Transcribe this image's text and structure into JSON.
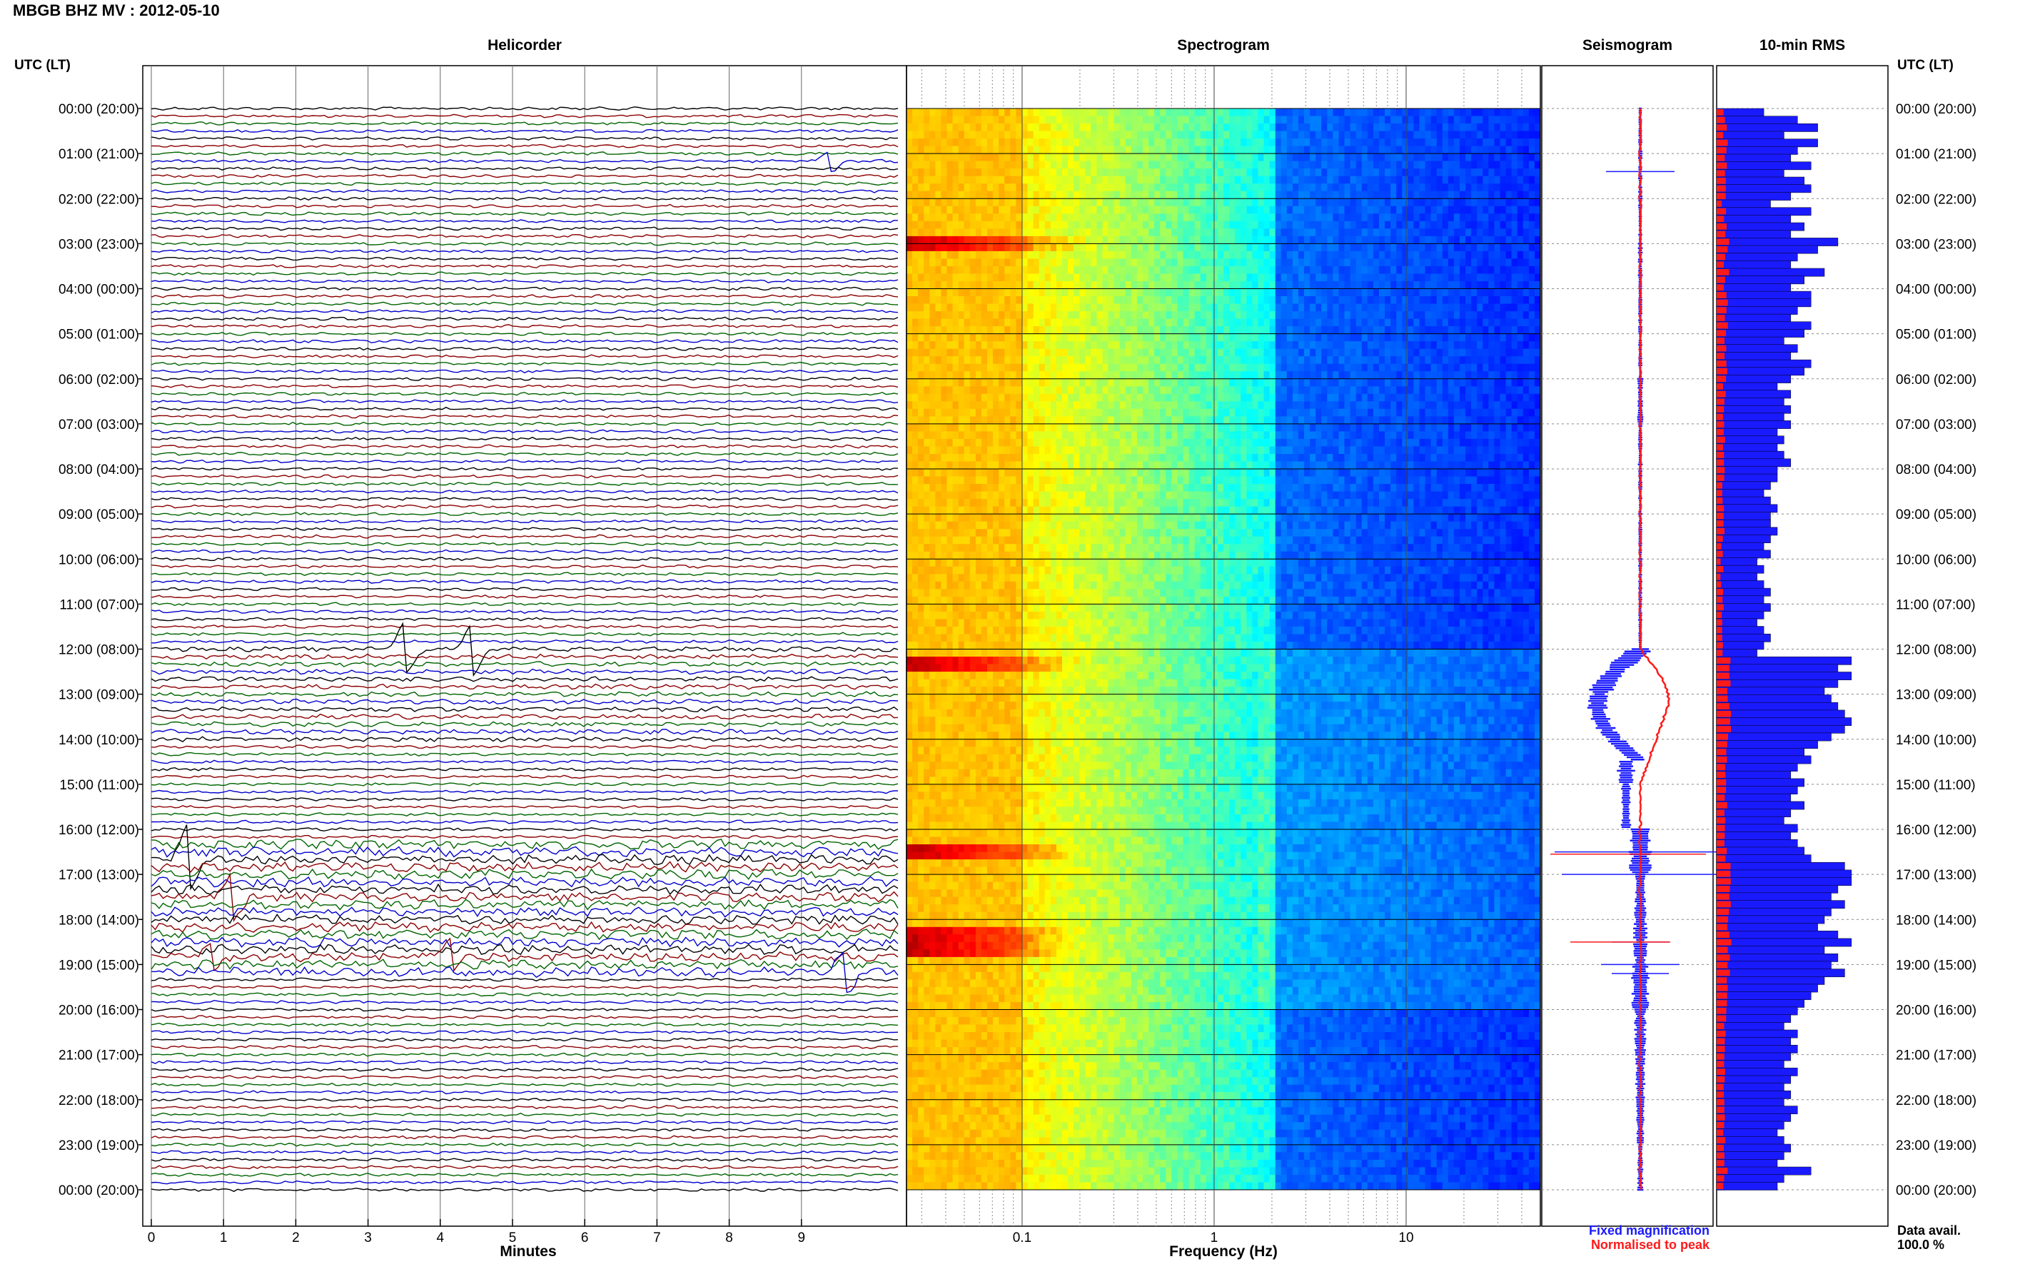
{
  "page": {
    "title": "MBGB BHZ MV : 2012-05-10"
  },
  "panels": {
    "helicorder": "Helicorder",
    "spectrogram": "Spectrogram",
    "seismogram": "Seismogram",
    "rms": "10-min RMS"
  },
  "axes": {
    "time_label_left": "UTC (LT)",
    "time_label_right": "UTC (LT)",
    "hour_labels": [
      "00:00 (20:00)",
      "01:00 (21:00)",
      "02:00 (22:00)",
      "03:00 (23:00)",
      "04:00 (00:00)",
      "05:00 (01:00)",
      "06:00 (02:00)",
      "07:00 (03:00)",
      "08:00 (04:00)",
      "09:00 (05:00)",
      "10:00 (06:00)",
      "11:00 (07:00)",
      "12:00 (08:00)",
      "13:00 (09:00)",
      "14:00 (10:00)",
      "15:00 (11:00)",
      "16:00 (12:00)",
      "17:00 (13:00)",
      "18:00 (14:00)",
      "19:00 (15:00)",
      "20:00 (16:00)",
      "21:00 (17:00)",
      "22:00 (18:00)",
      "23:00 (19:00)",
      "00:00 (20:00)"
    ],
    "minutes_label": "Minutes",
    "minute_ticks": [
      "0",
      "1",
      "2",
      "3",
      "4",
      "5",
      "6",
      "7",
      "8",
      "9"
    ],
    "frequency_label": "Frequency (Hz)",
    "frequency_ticks": [
      "0.1",
      "1",
      "10"
    ]
  },
  "legend": {
    "fixed": "Fixed magnification",
    "normalised": "Normalised to peak",
    "fixed_color": "#1a1aff",
    "normalised_color": "#ff1a1a"
  },
  "data_avail": {
    "label": "Data avail.",
    "value": "100.0 %"
  },
  "colors": {
    "trace_colors": [
      "#000000",
      "#8b0000",
      "#006400",
      "#0000cd"
    ],
    "seismogram_fixed": "#1a1aff",
    "seismogram_norm": "#ff1a1a",
    "rms_fixed": "#1a1aff",
    "rms_norm": "#ff1a1a"
  },
  "chart_data": {
    "type": "heatmap",
    "helicorder": {
      "lines_per_hour": 6,
      "minutes_per_line": 10,
      "events_utc": [
        {
          "time": "01:10",
          "minute": 9.1,
          "size": 0.5
        },
        {
          "time": "12:00",
          "minute": 3.4,
          "size": 1.2
        },
        {
          "time": "12:00",
          "minute": 4.3,
          "size": 1.2
        },
        {
          "time": "16:40",
          "minute": 0.5,
          "size": 1.5
        },
        {
          "time": "17:30",
          "minute": 1.1,
          "size": 1.0
        },
        {
          "time": "18:50",
          "minute": 0.8,
          "size": 0.7
        },
        {
          "time": "18:50",
          "minute": 4.0,
          "size": 0.8
        },
        {
          "time": "19:10",
          "minute": 9.3,
          "size": 1.0
        }
      ]
    },
    "spectrogram": {
      "frequency_range_hz": [
        0.025,
        50
      ],
      "x_scale": "log",
      "hot_bands_utc": [
        "03:00",
        "12:20",
        "16:30",
        "18:20",
        "18:40"
      ]
    },
    "seismogram_hourly_amplitude": [
      0.2,
      0.22,
      0.2,
      0.24,
      0.2,
      0.2,
      0.3,
      0.24,
      0.2,
      0.2,
      0.2,
      0.2,
      1.4,
      1.0,
      0.9,
      0.5,
      1.2,
      0.6,
      0.7,
      0.9,
      0.6,
      0.5,
      0.4,
      0.3
    ],
    "rms_10min": [
      0.35,
      0.6,
      0.75,
      0.5,
      0.75,
      0.6,
      0.55,
      0.7,
      0.5,
      0.65,
      0.7,
      0.55,
      0.4,
      0.7,
      0.55,
      0.65,
      0.55,
      0.9,
      0.75,
      0.6,
      0.55,
      0.8,
      0.65,
      0.55,
      0.7,
      0.7,
      0.6,
      0.55,
      0.7,
      0.65,
      0.5,
      0.6,
      0.55,
      0.7,
      0.65,
      0.55,
      0.45,
      0.55,
      0.5,
      0.55,
      0.5,
      0.55,
      0.45,
      0.5,
      0.45,
      0.5,
      0.55,
      0.45,
      0.45,
      0.4,
      0.35,
      0.4,
      0.45,
      0.4,
      0.4,
      0.45,
      0.4,
      0.35,
      0.4,
      0.3,
      0.35,
      0.3,
      0.35,
      0.4,
      0.35,
      0.4,
      0.35,
      0.3,
      0.35,
      0.4,
      0.35,
      0.3,
      1.0,
      0.9,
      1.0,
      0.9,
      0.8,
      0.85,
      0.9,
      0.95,
      1.0,
      0.95,
      0.85,
      0.75,
      0.65,
      0.7,
      0.6,
      0.55,
      0.65,
      0.6,
      0.55,
      0.65,
      0.55,
      0.5,
      0.6,
      0.55,
      0.6,
      0.65,
      0.7,
      0.95,
      1.0,
      1.0,
      0.9,
      0.85,
      0.95,
      0.85,
      0.8,
      0.75,
      0.9,
      1.0,
      0.8,
      0.9,
      0.85,
      0.95,
      0.8,
      0.75,
      0.7,
      0.65,
      0.6,
      0.55,
      0.5,
      0.6,
      0.55,
      0.6,
      0.55,
      0.5,
      0.6,
      0.55,
      0.5,
      0.55,
      0.5,
      0.6,
      0.55,
      0.5,
      0.45,
      0.5,
      0.55,
      0.5,
      0.45,
      0.7,
      0.5,
      0.45
    ]
  }
}
